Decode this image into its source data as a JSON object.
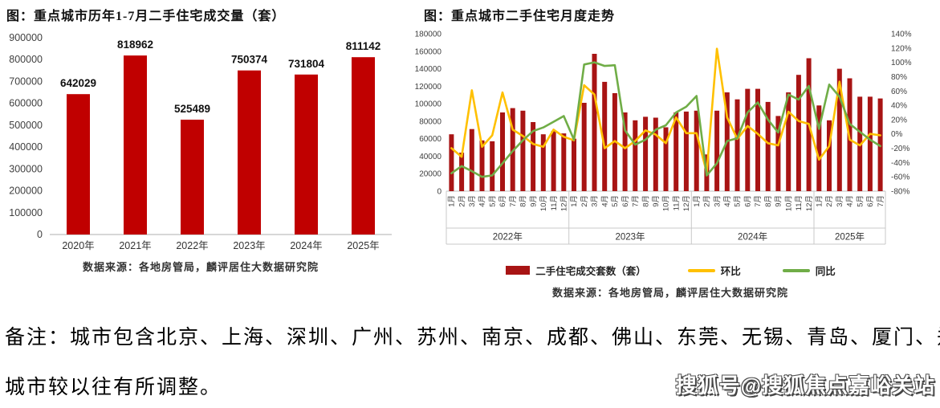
{
  "note": {
    "line1": "备注：城市包含北京、上海、深圳、广州、苏州、南京、成都、佛山、东莞、无锡、青岛、厦门、郑州，",
    "line2": "城市较以往有所调整。"
  },
  "watermark": "搜狐号@搜狐焦点嘉峪关站",
  "colors": {
    "left_bar": "#C00000",
    "right_bar": "#A81414",
    "mom_line": "#FFC000",
    "yoy_line": "#70AD47",
    "axis_text": "#404040",
    "axis_line": "#BFBFBF",
    "group_box_line": "#C9C9C9"
  },
  "chart_data": [
    {
      "type": "bar",
      "title": "图：重点城市历年1-7月二手住宅成交量（套）",
      "source": "数据来源：各地房管局，麟评居住大数据研究院",
      "categories": [
        "2020年",
        "2021年",
        "2022年",
        "2023年",
        "2024年",
        "2025年"
      ],
      "values": [
        642029,
        818962,
        525489,
        750374,
        731804,
        811142
      ],
      "bar_color": "#C00000",
      "xlabel": "",
      "ylabel": "",
      "ylim": [
        0,
        900000
      ],
      "ytick_step": 100000,
      "grid": false,
      "data_labels": true
    },
    {
      "type": "combo",
      "title": "图：重点城市二手住宅月度走势",
      "source": "数据来源：各地房管局，麟评居住大数据研究院",
      "x_groups": [
        {
          "year": "2022年",
          "months": [
            "1月",
            "2月",
            "3月",
            "4月",
            "5月",
            "6月",
            "7月",
            "8月",
            "9月",
            "10月",
            "11月",
            "12月"
          ]
        },
        {
          "year": "2023年",
          "months": [
            "1月",
            "2月",
            "3月",
            "4月",
            "5月",
            "6月",
            "7月",
            "8月",
            "9月",
            "10月",
            "11月",
            "12月"
          ]
        },
        {
          "year": "2024年",
          "months": [
            "1月",
            "2月",
            "3月",
            "4月",
            "5月",
            "6月",
            "7月",
            "8月",
            "9月",
            "10月",
            "11月",
            "12月"
          ]
        },
        {
          "year": "2025年",
          "months": [
            "1月",
            "2月",
            "3月",
            "4月",
            "5月",
            "6月",
            "7月"
          ]
        }
      ],
      "left_axis": {
        "min": 0,
        "max": 180000,
        "step": 20000
      },
      "right_axis": {
        "min": -80,
        "max": 140,
        "step": 20,
        "suffix": "%"
      },
      "grid": false,
      "legend_position": "bottom",
      "series": [
        {
          "name": "二手住宅成交套数（套）",
          "type": "bar",
          "axis": "left",
          "color": "#A81414",
          "values": [
            65000,
            44000,
            71000,
            58000,
            57000,
            90000,
            95000,
            92000,
            79000,
            65000,
            69000,
            66000,
            60000,
            101000,
            157000,
            125000,
            112000,
            90000,
            81000,
            85000,
            84000,
            73000,
            90000,
            91000,
            92000,
            42000,
            92000,
            113000,
            105000,
            117000,
            117000,
            102000,
            86000,
            113000,
            133000,
            152000,
            98000,
            81000,
            140000,
            129000,
            108000,
            108000,
            106000
          ]
        },
        {
          "name": "环比",
          "type": "line",
          "axis": "right",
          "color": "#FFC000",
          "values_pct": [
            -20,
            -32,
            61,
            -18,
            -2,
            58,
            6,
            -3,
            -14,
            -18,
            6,
            -4,
            -9,
            68,
            55,
            -20,
            -10,
            -20,
            -10,
            5,
            -1,
            -13,
            23,
            1,
            1,
            -54,
            119,
            23,
            -7,
            11,
            0,
            -13,
            -16,
            31,
            18,
            14,
            -36,
            -17,
            73,
            -8,
            -16,
            0,
            -2
          ]
        },
        {
          "name": "同比",
          "type": "line",
          "axis": "right",
          "color": "#70AD47",
          "values_pct": [
            -55,
            -45,
            -52,
            -60,
            -58,
            -41,
            -24,
            -9,
            4,
            9,
            17,
            25,
            -8,
            97,
            100,
            95,
            96,
            5,
            -15,
            -8,
            6,
            12,
            30,
            38,
            53,
            -58,
            -41,
            -10,
            -6,
            30,
            44,
            20,
            2,
            55,
            48,
            67,
            7,
            69,
            52,
            14,
            3,
            -8,
            -17
          ]
        }
      ]
    }
  ]
}
